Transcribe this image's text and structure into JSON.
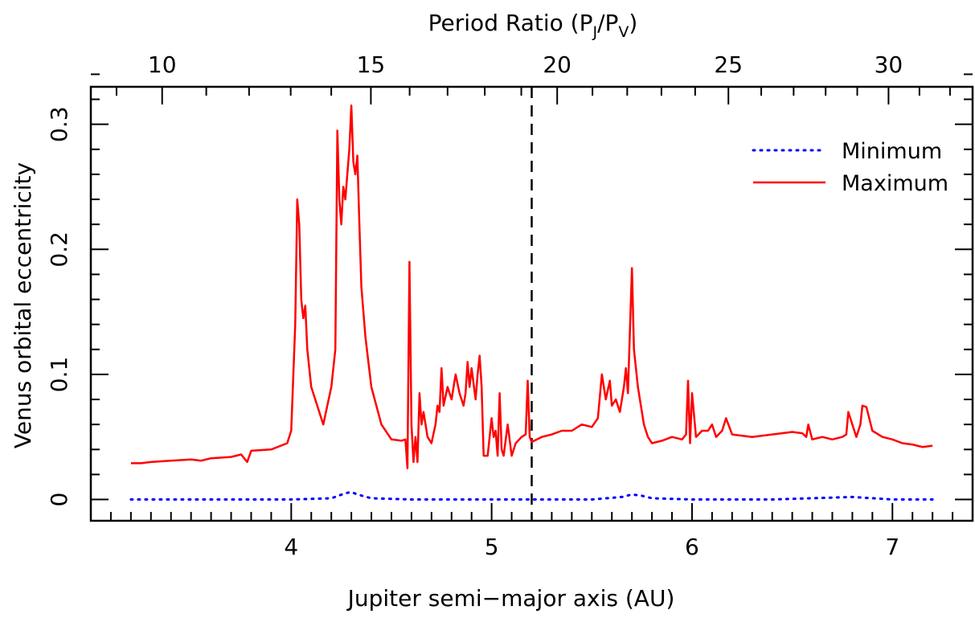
{
  "chart_data": {
    "type": "line",
    "title": "",
    "xlabel": "Jupiter semi−major axis (AU)",
    "ylabel": "Venus orbital eccentricity",
    "top_axis_label": {
      "prefix": "Period Ratio (P",
      "sub1": "J",
      "mid": "/P",
      "sub2": "V",
      "suffix": ")"
    },
    "xlim": [
      3.0,
      7.4
    ],
    "ylim": [
      -0.017,
      0.33
    ],
    "x_ticks": [
      "4",
      "5",
      "6",
      "7"
    ],
    "x_tick_values": [
      4,
      5,
      6,
      7
    ],
    "y_ticks": [
      "0",
      "0.1",
      "0.2",
      "0.3"
    ],
    "y_tick_values": [
      0,
      0.1,
      0.2,
      0.3
    ],
    "top_ticks": [
      "10",
      "15",
      "20",
      "25",
      "30"
    ],
    "top_tick_values": [
      10,
      15,
      20,
      25,
      30
    ],
    "top_minor_step": 1,
    "reference_line": {
      "x": 5.2,
      "style": "dashed",
      "color": "#000000"
    },
    "legend": {
      "placement": "top-right",
      "entries": [
        "Minimum",
        "Maximum"
      ]
    },
    "series": [
      {
        "name": "Minimum",
        "color": "#0000ff",
        "style": "dotted",
        "x": [
          3.2,
          3.5,
          4.0,
          4.2,
          4.27,
          4.3,
          4.33,
          4.4,
          4.6,
          5.0,
          5.2,
          5.5,
          5.65,
          5.7,
          5.75,
          5.8,
          6.0,
          6.4,
          6.8,
          7.0,
          7.2
        ],
        "values": [
          0.0,
          0.0,
          0.0,
          0.001,
          0.005,
          0.006,
          0.004,
          0.001,
          0.0,
          0.0,
          0.0,
          0.0,
          0.002,
          0.004,
          0.003,
          0.001,
          0.0,
          0.0,
          0.002,
          0.0,
          0.0
        ]
      },
      {
        "name": "Maximum",
        "color": "#ff0000",
        "style": "solid",
        "x": [
          3.2,
          3.25,
          3.3,
          3.4,
          3.5,
          3.55,
          3.6,
          3.7,
          3.75,
          3.78,
          3.8,
          3.9,
          3.98,
          4.0,
          4.02,
          4.03,
          4.04,
          4.05,
          4.06,
          4.07,
          4.08,
          4.1,
          4.12,
          4.14,
          4.16,
          4.18,
          4.2,
          4.22,
          4.23,
          4.24,
          4.25,
          4.26,
          4.27,
          4.28,
          4.29,
          4.3,
          4.31,
          4.32,
          4.33,
          4.34,
          4.35,
          4.37,
          4.4,
          4.45,
          4.5,
          4.55,
          4.57,
          4.58,
          4.59,
          4.6,
          4.61,
          4.62,
          4.63,
          4.64,
          4.65,
          4.66,
          4.68,
          4.7,
          4.72,
          4.73,
          4.74,
          4.75,
          4.76,
          4.78,
          4.8,
          4.82,
          4.84,
          4.86,
          4.87,
          4.88,
          4.89,
          4.9,
          4.92,
          4.93,
          4.94,
          4.95,
          4.96,
          4.98,
          5.0,
          5.01,
          5.02,
          5.03,
          5.04,
          5.05,
          5.06,
          5.08,
          5.1,
          5.12,
          5.15,
          5.17,
          5.18,
          5.19,
          5.2,
          5.25,
          5.3,
          5.35,
          5.4,
          5.45,
          5.5,
          5.53,
          5.55,
          5.57,
          5.59,
          5.6,
          5.62,
          5.64,
          5.66,
          5.67,
          5.68,
          5.69,
          5.7,
          5.71,
          5.73,
          5.76,
          5.78,
          5.8,
          5.85,
          5.9,
          5.95,
          5.97,
          5.98,
          5.99,
          6.0,
          6.02,
          6.05,
          6.08,
          6.1,
          6.12,
          6.15,
          6.17,
          6.2,
          6.3,
          6.4,
          6.5,
          6.55,
          6.57,
          6.58,
          6.6,
          6.65,
          6.7,
          6.75,
          6.77,
          6.78,
          6.8,
          6.82,
          6.84,
          6.85,
          6.87,
          6.9,
          6.95,
          7.0,
          7.05,
          7.1,
          7.15,
          7.2
        ],
        "values": [
          0.029,
          0.029,
          0.03,
          0.031,
          0.032,
          0.031,
          0.033,
          0.034,
          0.036,
          0.03,
          0.039,
          0.04,
          0.045,
          0.055,
          0.14,
          0.24,
          0.22,
          0.16,
          0.145,
          0.155,
          0.12,
          0.09,
          0.08,
          0.07,
          0.06,
          0.075,
          0.09,
          0.12,
          0.295,
          0.24,
          0.22,
          0.25,
          0.24,
          0.26,
          0.28,
          0.315,
          0.27,
          0.26,
          0.275,
          0.22,
          0.17,
          0.13,
          0.09,
          0.06,
          0.048,
          0.047,
          0.048,
          0.025,
          0.19,
          0.06,
          0.03,
          0.05,
          0.03,
          0.085,
          0.06,
          0.07,
          0.05,
          0.045,
          0.06,
          0.075,
          0.07,
          0.105,
          0.075,
          0.09,
          0.08,
          0.1,
          0.085,
          0.075,
          0.085,
          0.11,
          0.09,
          0.105,
          0.08,
          0.1,
          0.115,
          0.09,
          0.035,
          0.035,
          0.065,
          0.05,
          0.055,
          0.035,
          0.085,
          0.04,
          0.035,
          0.06,
          0.035,
          0.045,
          0.05,
          0.052,
          0.095,
          0.05,
          0.046,
          0.05,
          0.052,
          0.055,
          0.055,
          0.06,
          0.058,
          0.065,
          0.1,
          0.08,
          0.095,
          0.075,
          0.08,
          0.07,
          0.09,
          0.105,
          0.085,
          0.135,
          0.185,
          0.12,
          0.09,
          0.06,
          0.05,
          0.045,
          0.047,
          0.05,
          0.048,
          0.052,
          0.095,
          0.045,
          0.085,
          0.05,
          0.055,
          0.055,
          0.06,
          0.05,
          0.055,
          0.065,
          0.052,
          0.05,
          0.052,
          0.054,
          0.053,
          0.05,
          0.06,
          0.048,
          0.05,
          0.048,
          0.05,
          0.052,
          0.07,
          0.06,
          0.05,
          0.06,
          0.075,
          0.074,
          0.055,
          0.05,
          0.048,
          0.045,
          0.044,
          0.042,
          0.043
        ]
      }
    ]
  }
}
